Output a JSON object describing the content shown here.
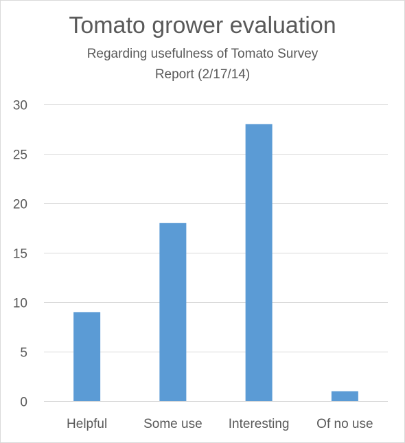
{
  "chart_data": {
    "type": "bar",
    "title": "Tomato grower evaluation",
    "subtitle_lines": [
      "Regarding usefulness of Tomato Survey",
      "Report (2/17/14)"
    ],
    "categories": [
      "Helpful",
      "Some use",
      "Interesting",
      "Of no use"
    ],
    "values": [
      9,
      18,
      28,
      1
    ],
    "xlabel": "",
    "ylabel": "",
    "ylim": [
      0,
      30
    ],
    "yticks": [
      0,
      5,
      10,
      15,
      20,
      25,
      30
    ],
    "grid": true,
    "legend": "none",
    "bar_color": "#5b9bd5",
    "grid_color": "#d9d9d9",
    "text_color": "#595959"
  }
}
